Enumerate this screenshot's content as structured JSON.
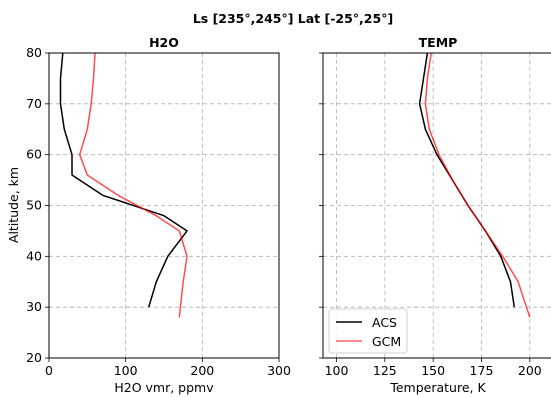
{
  "chart_data": {
    "type": "line",
    "title": "Ls [235°,245°] Lat [-25°,25°]",
    "legend": {
      "placement": "lower-left",
      "entries": [
        {
          "name": "ACS",
          "color": "#000000"
        },
        {
          "name": "GCM",
          "color": "#ff0000"
        }
      ]
    },
    "colors": {
      "ACS": "#000000",
      "GCM": "#ff0000"
    },
    "shared_y": {
      "label": "Altitude, km",
      "ylim": [
        20,
        80
      ],
      "ticks": [
        20,
        30,
        40,
        50,
        60,
        70,
        80
      ],
      "tick_labels": [
        "20",
        "30",
        "40",
        "50",
        "60",
        "70",
        "80"
      ]
    },
    "panels": [
      {
        "title": "H2O",
        "xlabel": "H2O vmr, ppmv",
        "xlim": [
          0,
          300
        ],
        "xticks": [
          0,
          100,
          200,
          300
        ],
        "xtick_labels": [
          "0",
          "100",
          "200",
          "300"
        ],
        "grid": true,
        "series": [
          {
            "name": "ACS",
            "y": [
              30,
              35,
              40,
              45,
              48,
              52,
              56,
              60,
              65,
              70,
              75,
              80
            ],
            "x": [
              130,
              140,
              155,
              180,
              150,
              70,
              30,
              30,
              20,
              15,
              15,
              18
            ]
          },
          {
            "name": "GCM",
            "y": [
              28,
              35,
              40,
              45,
              48,
              52,
              56,
              60,
              65,
              70,
              75,
              80
            ],
            "x": [
              170,
              175,
              180,
              170,
              140,
              90,
              50,
              40,
              50,
              55,
              58,
              60
            ]
          }
        ]
      },
      {
        "title": "TEMP",
        "xlabel": "Temperature, K",
        "xlim": [
          93,
          212
        ],
        "xticks": [
          100,
          125,
          150,
          175,
          200
        ],
        "xtick_labels": [
          "100",
          "125",
          "150",
          "175",
          "200"
        ],
        "grid": true,
        "series": [
          {
            "name": "ACS",
            "y": [
              30,
              35,
              40,
              45,
              50,
              55,
              60,
              65,
              70,
              75,
              80
            ],
            "x": [
              192,
              190,
              185,
              177,
              168,
              160,
              152,
              146,
              143,
              145,
              147
            ]
          },
          {
            "name": "GCM",
            "y": [
              28,
              35,
              40,
              45,
              50,
              55,
              60,
              65,
              70,
              75,
              80
            ],
            "x": [
              200,
              194,
              186,
              177,
              168,
              160,
              153,
              148,
              146,
              147,
              149
            ]
          }
        ]
      }
    ]
  }
}
